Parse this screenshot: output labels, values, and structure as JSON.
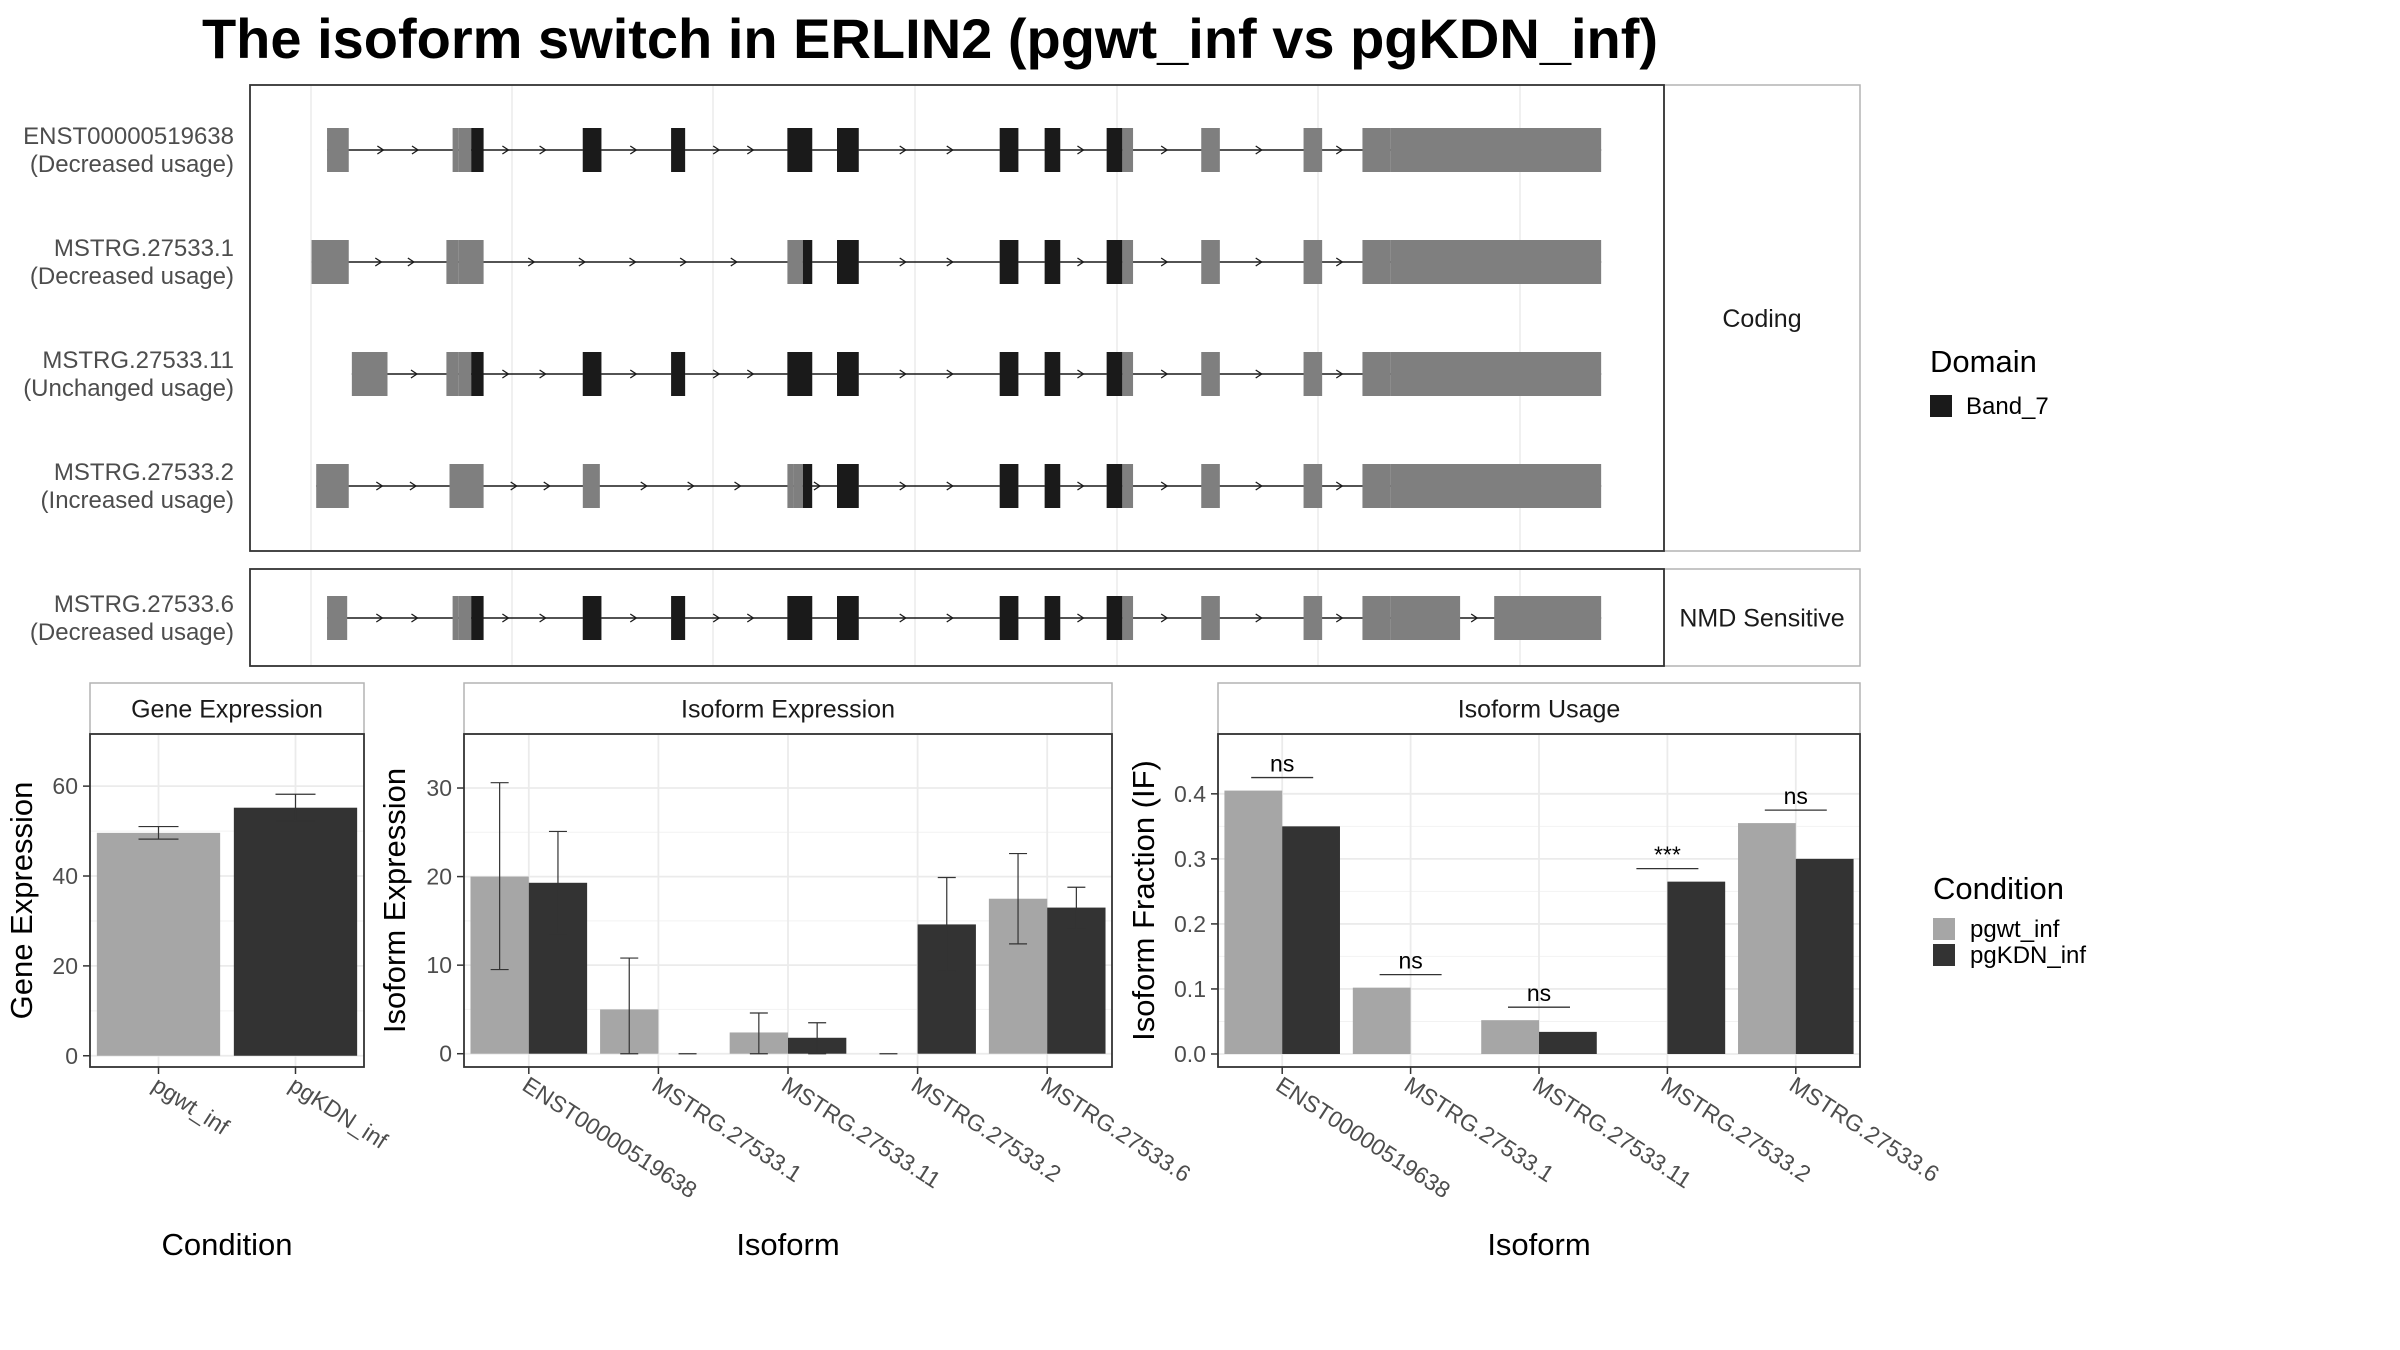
{
  "title": "The isoform switch in ERLIN2 (pgwt_inf vs pgKDN_inf)",
  "colors": {
    "coding_exon": "#7f7f7f",
    "domain": "#1a1a1a",
    "pgwt_inf": "#a6a6a6",
    "pgKDN_inf": "#333333",
    "grid": "#ebebeb",
    "strip_border": "#b3b3b3"
  },
  "transcript_panels": [
    {
      "facet_label": "Coding",
      "transcripts": [
        {
          "id": "ENST00000519638",
          "usage": "(Decreased usage)",
          "exons": [
            [
              211,
              225
            ],
            [
              292,
              296
            ],
            [
              296,
              304
            ],
            [
              376,
              388
            ],
            [
              433,
              442
            ],
            [
              508,
              524
            ],
            [
              540,
              554
            ],
            [
              645,
              657
            ],
            [
              674,
              684
            ],
            [
              714,
              724
            ],
            [
              724,
              731
            ],
            [
              775,
              787
            ],
            [
              841,
              853
            ],
            [
              879,
              897
            ],
            [
              897,
              1033
            ]
          ],
          "domains": [
            [
              304,
              312
            ],
            [
              376,
              388
            ],
            [
              433,
              442
            ],
            [
              508,
              524
            ],
            [
              540,
              554
            ],
            [
              645,
              657
            ],
            [
              674,
              684
            ],
            [
              714,
              724
            ]
          ]
        },
        {
          "id": "MSTRG.27533.1",
          "usage": "(Decreased usage)",
          "exons": [
            [
              201,
              225
            ],
            [
              288,
              296
            ],
            [
              296,
              312
            ],
            [
              508,
              518
            ],
            [
              518,
              524
            ],
            [
              540,
              554
            ],
            [
              645,
              657
            ],
            [
              674,
              684
            ],
            [
              714,
              724
            ],
            [
              724,
              731
            ],
            [
              775,
              787
            ],
            [
              841,
              853
            ],
            [
              879,
              897
            ],
            [
              897,
              1033
            ]
          ],
          "domains": [
            [
              518,
              524
            ],
            [
              540,
              554
            ],
            [
              645,
              657
            ],
            [
              674,
              684
            ],
            [
              714,
              724
            ]
          ]
        },
        {
          "id": "MSTRG.27533.11",
          "usage": "(Unchanged usage)",
          "exons": [
            [
              227,
              250
            ],
            [
              288,
              296
            ],
            [
              296,
              304
            ],
            [
              376,
              388
            ],
            [
              433,
              442
            ],
            [
              508,
              524
            ],
            [
              540,
              554
            ],
            [
              645,
              657
            ],
            [
              674,
              684
            ],
            [
              714,
              724
            ],
            [
              724,
              731
            ],
            [
              775,
              787
            ],
            [
              841,
              853
            ],
            [
              879,
              897
            ],
            [
              897,
              1033
            ]
          ],
          "domains": [
            [
              304,
              312
            ],
            [
              376,
              388
            ],
            [
              433,
              442
            ],
            [
              508,
              524
            ],
            [
              540,
              554
            ],
            [
              645,
              657
            ],
            [
              674,
              684
            ],
            [
              714,
              724
            ]
          ]
        },
        {
          "id": "MSTRG.27533.2",
          "usage": "(Increased usage)",
          "exons": [
            [
              204,
              225
            ],
            [
              290,
              312
            ],
            [
              376,
              387
            ],
            [
              508,
              512
            ],
            [
              512,
              518
            ],
            [
              540,
              554
            ],
            [
              645,
              657
            ],
            [
              674,
              684
            ],
            [
              714,
              724
            ],
            [
              724,
              731
            ],
            [
              775,
              787
            ],
            [
              841,
              853
            ],
            [
              879,
              897
            ],
            [
              897,
              1033
            ]
          ],
          "domains": [
            [
              518,
              524
            ],
            [
              540,
              554
            ],
            [
              645,
              657
            ],
            [
              674,
              684
            ],
            [
              714,
              724
            ]
          ]
        }
      ]
    },
    {
      "facet_label": "NMD Sensitive",
      "transcripts": [
        {
          "id": "MSTRG.27533.6",
          "usage": "(Decreased usage)",
          "exons": [
            [
              211,
              224
            ],
            [
              292,
              296
            ],
            [
              296,
              304
            ],
            [
              376,
              388
            ],
            [
              433,
              442
            ],
            [
              508,
              524
            ],
            [
              540,
              554
            ],
            [
              645,
              657
            ],
            [
              674,
              684
            ],
            [
              714,
              724
            ],
            [
              724,
              731
            ],
            [
              775,
              787
            ],
            [
              841,
              853
            ],
            [
              879,
              897
            ],
            [
              897,
              942
            ],
            [
              964,
              1033
            ]
          ],
          "domains": [
            [
              304,
              312
            ],
            [
              376,
              388
            ],
            [
              433,
              442
            ],
            [
              508,
              524
            ],
            [
              540,
              554
            ],
            [
              645,
              657
            ],
            [
              674,
              684
            ],
            [
              714,
              724
            ]
          ]
        }
      ]
    }
  ],
  "domain_legend": {
    "title": "Domain",
    "items": [
      "Band_7"
    ]
  },
  "condition_legend": {
    "title": "Condition",
    "items": [
      "pgwt_inf",
      "pgKDN_inf"
    ]
  },
  "chart_data": [
    {
      "type": "bar",
      "strip": "Gene Expression",
      "xlabel": "Condition",
      "ylabel": "Gene Expression",
      "ylim": [
        -2.5,
        71.6
      ],
      "yticks": [
        0,
        20,
        40,
        60
      ],
      "categories": [
        "pgwt_inf",
        "pgKDN_inf"
      ],
      "values": [
        49.6,
        55.2
      ],
      "errors": [
        [
          48.2,
          51.0
        ],
        [
          52.3,
          58.2
        ]
      ]
    },
    {
      "type": "bar",
      "strip": "Isoform Expression",
      "xlabel": "Isoform",
      "ylabel": "Isoform Expression",
      "ylim": [
        -1.5,
        36.1
      ],
      "yticks": [
        0,
        10,
        20,
        30
      ],
      "categories": [
        "ENST00000519638",
        "MSTRG.27533.1",
        "MSTRG.27533.11",
        "MSTRG.27533.2",
        "MSTRG.27533.6"
      ],
      "series": [
        {
          "name": "pgwt_inf",
          "values": [
            20.0,
            5.0,
            2.4,
            0.0,
            17.5
          ],
          "errors": [
            [
              9.5,
              30.6
            ],
            [
              0.0,
              10.8
            ],
            [
              0.0,
              4.6
            ],
            [
              0.0,
              0.0
            ],
            [
              12.4,
              22.6
            ]
          ]
        },
        {
          "name": "pgKDN_inf",
          "values": [
            19.3,
            0.0,
            1.8,
            14.6,
            16.5
          ],
          "errors": [
            [
              13.5,
              25.1
            ],
            [
              0.0,
              0.0
            ],
            [
              0.0,
              3.5
            ],
            [
              9.3,
              19.9
            ],
            [
              14.1,
              18.8
            ]
          ]
        }
      ]
    },
    {
      "type": "bar",
      "strip": "Isoform Usage",
      "xlabel": "Isoform",
      "ylabel": "Isoform Fraction (IF)",
      "ylim": [
        -0.02,
        0.492
      ],
      "yticks": [
        "0.0",
        "0.1",
        "0.2",
        "0.3",
        "0.4"
      ],
      "categories": [
        "ENST00000519638",
        "MSTRG.27533.1",
        "MSTRG.27533.11",
        "MSTRG.27533.2",
        "MSTRG.27533.6"
      ],
      "series": [
        {
          "name": "pgwt_inf",
          "values": [
            0.405,
            0.102,
            0.052,
            0.0,
            0.355
          ]
        },
        {
          "name": "pgKDN_inf",
          "values": [
            0.35,
            0.0,
            0.034,
            0.265,
            0.3
          ]
        }
      ],
      "significance": [
        {
          "label": "ns",
          "y": 0.425
        },
        {
          "label": "ns",
          "y": 0.122
        },
        {
          "label": "ns",
          "y": 0.072
        },
        {
          "label": "***",
          "y": 0.285
        },
        {
          "label": "ns",
          "y": 0.375
        }
      ]
    }
  ]
}
